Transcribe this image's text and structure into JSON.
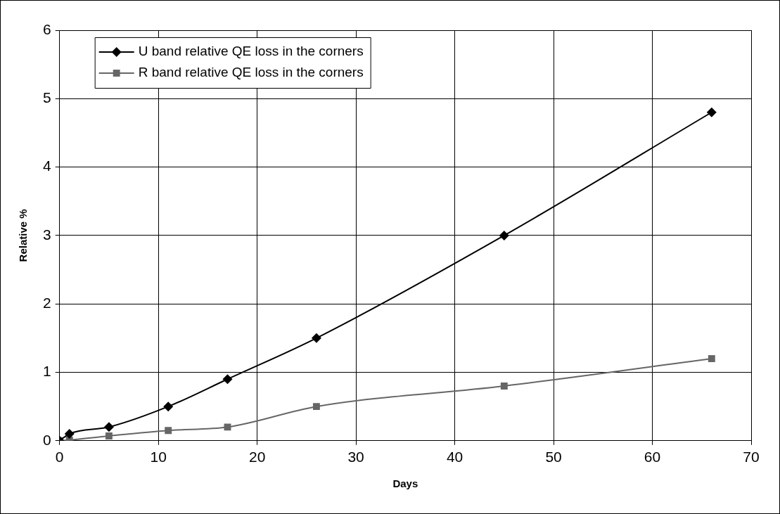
{
  "chart_data": {
    "type": "line",
    "xlabel": "Days",
    "ylabel": "Relative %",
    "x": [
      0,
      1,
      5,
      11,
      17,
      26,
      45,
      66
    ],
    "series": [
      {
        "name": "U band relative QE loss in the corners",
        "color": "#000000",
        "marker": "diamond",
        "values": [
          0,
          0.1,
          0.2,
          0.5,
          0.9,
          1.5,
          3.0,
          4.8
        ]
      },
      {
        "name": "R band relative QE loss in the corners",
        "color": "#666666",
        "marker": "square",
        "values": [
          0,
          0.01,
          0.07,
          0.15,
          0.2,
          0.5,
          0.8,
          1.2
        ]
      }
    ],
    "xlim": [
      0,
      70
    ],
    "xticks": [
      0,
      10,
      20,
      30,
      40,
      50,
      60,
      70
    ],
    "ylim": [
      0,
      6
    ],
    "yticks": [
      0,
      1,
      2,
      3,
      4,
      5,
      6
    ],
    "grid": true,
    "legend": "top left",
    "line_style": "solid"
  }
}
